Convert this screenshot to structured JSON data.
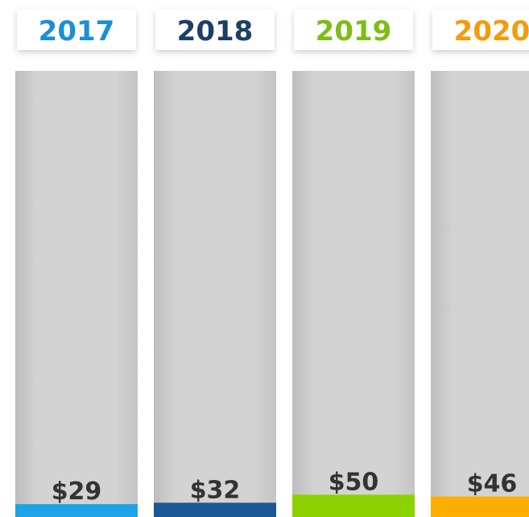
{
  "chart_data": {
    "type": "bar",
    "categories": [
      "2017",
      "2018",
      "2019",
      "2020"
    ],
    "values": [
      29,
      32,
      50,
      46
    ],
    "value_labels": [
      "$29",
      "$32",
      "$50",
      "$46"
    ],
    "colors": [
      "#1ea3e8",
      "#1c5898",
      "#8ed100",
      "#ffae00"
    ],
    "title_colors": [
      "#1a8fdb",
      "#1f3e66",
      "#7dbd16",
      "#f59a0c"
    ],
    "ylim": [
      0,
      1000
    ]
  }
}
